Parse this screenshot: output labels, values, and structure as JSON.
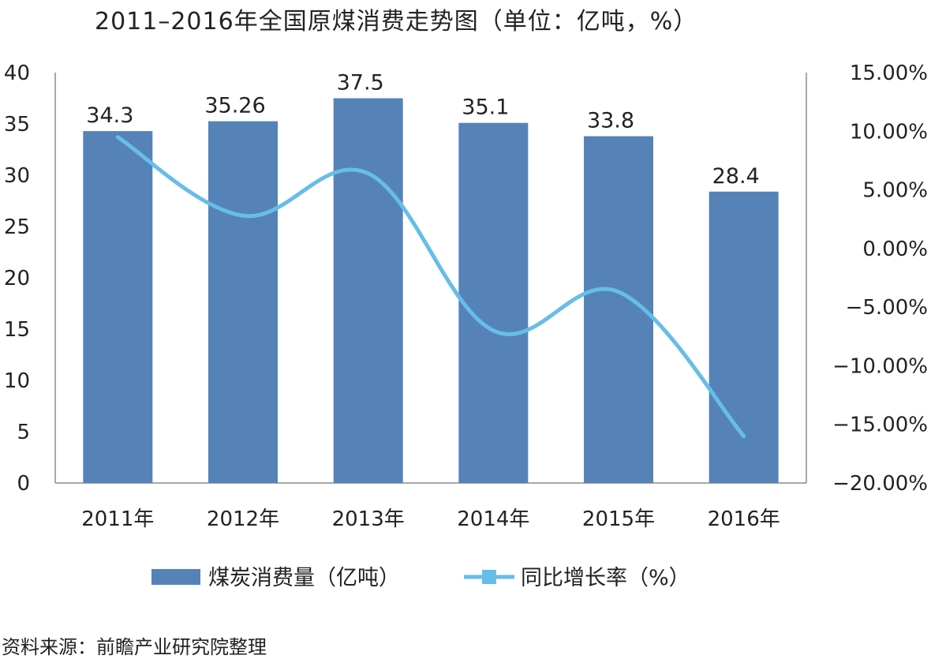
{
  "chart_data": {
    "type": "bar",
    "title": "2011–2016年全国原煤消费走势图（单位：亿吨，%）",
    "categories": [
      "2011年",
      "2012年",
      "2013年",
      "2014年",
      "2015年",
      "2016年"
    ],
    "series": [
      {
        "name": "煤炭消费量（亿吨）",
        "type": "bar",
        "axis": "left",
        "color": "#5583b8",
        "values": [
          34.3,
          35.26,
          37.5,
          35.1,
          33.8,
          28.4
        ],
        "data_labels": [
          "34.3",
          "35.26",
          "37.5",
          "35.1",
          "33.8",
          "28.4"
        ]
      },
      {
        "name": "同比增长率（%）",
        "type": "line",
        "axis": "right",
        "color": "#67bde8",
        "values": [
          9.5,
          2.8,
          6.4,
          -7.0,
          -3.7,
          -16.0
        ]
      }
    ],
    "y_left": {
      "min": 0,
      "max": 40,
      "step": 5,
      "ticks": [
        "0",
        "5",
        "10",
        "15",
        "20",
        "25",
        "30",
        "35",
        "40"
      ]
    },
    "y_right": {
      "min": -20,
      "max": 15,
      "step": 5,
      "ticks": [
        "−20.00%",
        "−15.00%",
        "−10.00%",
        "−5.00%",
        "0.00%",
        "5.00%",
        "10.00%",
        "15.00%"
      ]
    },
    "legend_position": "bottom",
    "grid": false
  },
  "source_note": "资料来源：前瞻产业研究院整理"
}
